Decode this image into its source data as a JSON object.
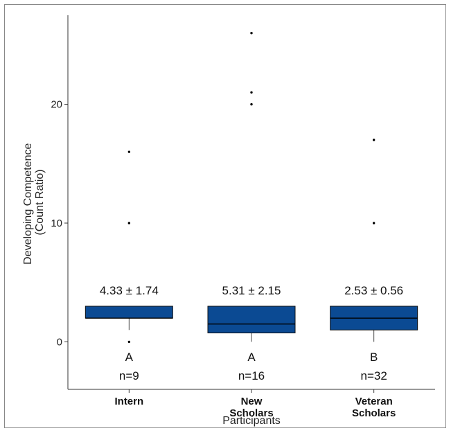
{
  "chart_data": {
    "type": "box",
    "xlabel": "Participants",
    "ylabel_line1": "Developing Competence",
    "ylabel_line2": "(Count Ratio)",
    "ylim": [
      -4,
      27.5
    ],
    "yticks": [
      0,
      10,
      20
    ],
    "grid": false,
    "box_color": "#0b4a93",
    "categories": [
      {
        "label_lines": [
          "Intern"
        ],
        "q1": 2,
        "median": 2,
        "q3": 3,
        "whisker_low": 1,
        "whisker_high": 3,
        "outliers": [
          0,
          10,
          16
        ],
        "mean_sd": "4.33 ± 1.74",
        "group": "A",
        "n": "n=9"
      },
      {
        "label_lines": [
          "New",
          "Scholars"
        ],
        "q1": 0.75,
        "median": 1.5,
        "q3": 3,
        "whisker_low": 0,
        "whisker_high": 3,
        "outliers": [
          20,
          21,
          26
        ],
        "mean_sd": "5.31 ± 2.15",
        "group": "A",
        "n": "n=16"
      },
      {
        "label_lines": [
          "Veteran",
          "Scholars"
        ],
        "q1": 1,
        "median": 2,
        "q3": 3,
        "whisker_low": 0,
        "whisker_high": 3,
        "outliers": [
          10,
          17
        ],
        "mean_sd": "2.53 ± 0.56",
        "group": "B",
        "n": "n=32"
      }
    ]
  }
}
